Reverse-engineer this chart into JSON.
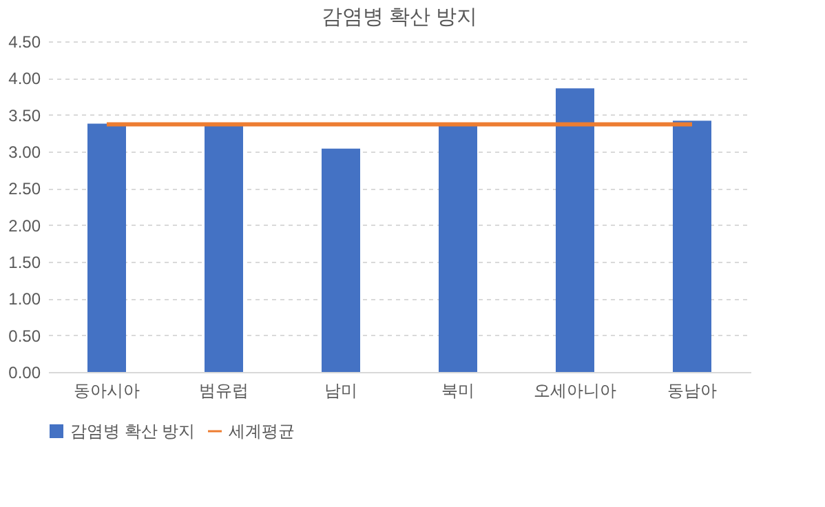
{
  "chart_data": {
    "type": "bar",
    "title": "감염병 확산 방지",
    "categories": [
      "동아시아",
      "범유럽",
      "남미",
      "북미",
      "오세아니아",
      "동남아"
    ],
    "series": [
      {
        "name": "감염병 확산 방지",
        "color": "#4472c4",
        "values": [
          3.38,
          3.36,
          3.04,
          3.36,
          3.86,
          3.42
        ]
      },
      {
        "name": "세계평균",
        "type": "line",
        "color": "#ed7d31",
        "values": [
          3.37,
          3.37,
          3.37,
          3.37,
          3.37,
          3.37
        ]
      }
    ],
    "ylim": [
      0,
      4.5
    ],
    "yticks": [
      {
        "value": 0,
        "label": "0.00"
      },
      {
        "value": 0.5,
        "label": "0.50"
      },
      {
        "value": 1,
        "label": "1.00"
      },
      {
        "value": 1.5,
        "label": "1.50"
      },
      {
        "value": 2,
        "label": "2.00"
      },
      {
        "value": 2.5,
        "label": "2.50"
      },
      {
        "value": 3,
        "label": "3.00"
      },
      {
        "value": 3.5,
        "label": "3.50"
      },
      {
        "value": 4,
        "label": "4.00"
      },
      {
        "value": 4.5,
        "label": "4.50"
      }
    ],
    "grid": "y",
    "legend": "bottom",
    "marker": "none"
  }
}
